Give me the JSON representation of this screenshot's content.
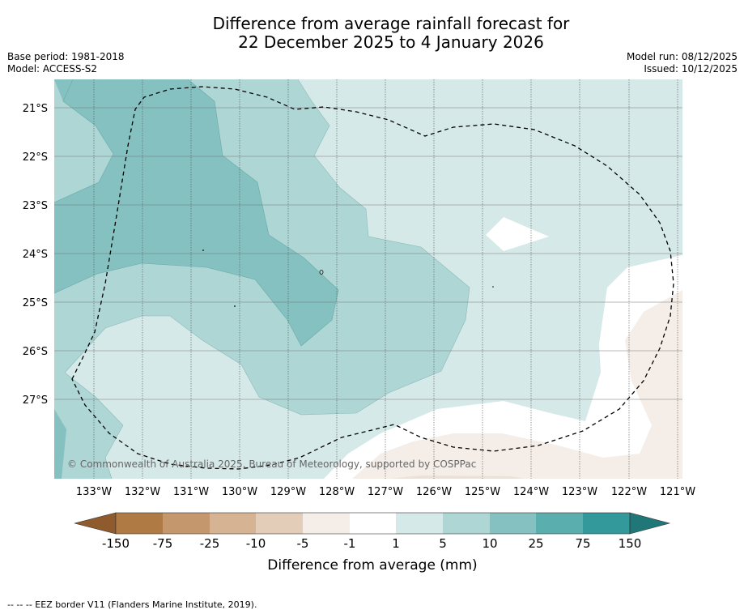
{
  "title": {
    "line1": "Difference from average rainfall forecast for",
    "line2": "22 December 2025 to 4 January 2026"
  },
  "meta_left": {
    "base_period": "Base period: 1981-2018",
    "model": "Model: ACCESS-S2"
  },
  "meta_right": {
    "model_run": "Model run: 08/12/2025",
    "issued": "Issued: 10/12/2025"
  },
  "map": {
    "latitude_labels": [
      "21°S",
      "22°S",
      "23°S",
      "24°S",
      "25°S",
      "26°S",
      "27°S"
    ],
    "longitude_labels": [
      "133°W",
      "132°W",
      "131°W",
      "130°W",
      "129°W",
      "128°W",
      "127°W",
      "126°W",
      "125°W",
      "124°W",
      "123°W",
      "122°W",
      "121°W"
    ],
    "copyright": "© Commonwealth of Australia 2025, Bureau of Meteorology, supported by COSPPac"
  },
  "colorbar": {
    "tick_labels": [
      "-150",
      "-75",
      "-25",
      "-10",
      "-5",
      "-1",
      "1",
      "5",
      "10",
      "25",
      "75",
      "150"
    ],
    "colors": [
      "#8f5a2c",
      "#b07a44",
      "#c4976c",
      "#d6b393",
      "#e3cdb9",
      "#f5eee8",
      "#ffffff",
      "#d5e9e8",
      "#add6d5",
      "#84c1c0",
      "#5aaead",
      "#33999a",
      "#1f7778"
    ],
    "label": "Difference from average (mm)"
  },
  "footnote": "-- -- -- EEZ border V11 (Flanders Marine Institute, 2019)."
}
